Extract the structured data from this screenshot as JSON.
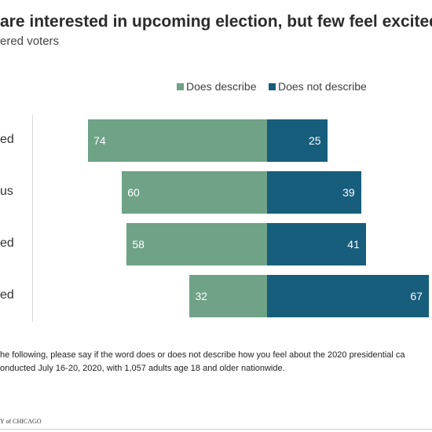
{
  "header": {
    "title": "are interested in upcoming election, but few feel excited",
    "subtitle": "ered voters"
  },
  "legend": {
    "describe": "Does describe",
    "not_describe": "Does not describe"
  },
  "colors": {
    "describe": "#6fa287",
    "not_describe": "#175d7c"
  },
  "chart_data": {
    "type": "bar",
    "orientation": "horizontal-diverging",
    "categories": [
      "ed",
      "us",
      "ed",
      "ed"
    ],
    "series": [
      {
        "name": "Does describe",
        "values": [
          74,
          60,
          58,
          32
        ]
      },
      {
        "name": "Does not describe",
        "values": [
          25,
          39,
          41,
          67
        ]
      }
    ],
    "legend_position": "top",
    "grid": false
  },
  "notes": {
    "question": "he following, please say if the word does or does not describe how you feel about the 2020 presidential ca",
    "method": "onducted July 16-20, 2020, with 1,057 adults age 18 and older nationwide."
  },
  "logo": {
    "text": "Y of CHICAGO"
  }
}
